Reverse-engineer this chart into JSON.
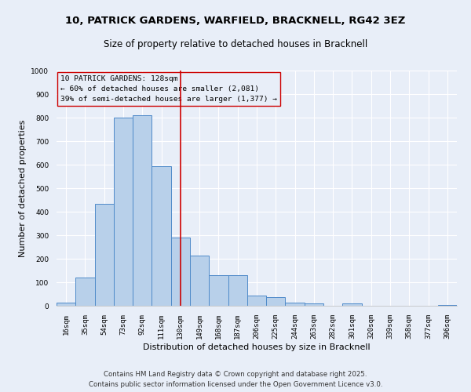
{
  "title_line1": "10, PATRICK GARDENS, WARFIELD, BRACKNELL, RG42 3EZ",
  "title_line2": "Size of property relative to detached houses in Bracknell",
  "xlabel": "Distribution of detached houses by size in Bracknell",
  "ylabel": "Number of detached properties",
  "bin_labels": [
    "16sqm",
    "35sqm",
    "54sqm",
    "73sqm",
    "92sqm",
    "111sqm",
    "130sqm",
    "149sqm",
    "168sqm",
    "187sqm",
    "206sqm",
    "225sqm",
    "244sqm",
    "263sqm",
    "282sqm",
    "301sqm",
    "320sqm",
    "339sqm",
    "358sqm",
    "377sqm",
    "396sqm"
  ],
  "bar_heights": [
    15,
    120,
    435,
    800,
    810,
    595,
    290,
    215,
    130,
    130,
    42,
    38,
    12,
    10,
    0,
    10,
    0,
    0,
    0,
    0,
    5
  ],
  "bar_color": "#b8d0ea",
  "bar_edge_color": "#4f8ac9",
  "vline_color": "#cc0000",
  "vline_pos": 6.0,
  "annotation_text_line1": "10 PATRICK GARDENS: 128sqm",
  "annotation_text_line2": "← 60% of detached houses are smaller (2,081)",
  "annotation_text_line3": "39% of semi-detached houses are larger (1,377) →",
  "annotation_fontsize": 6.8,
  "box_edge_color": "#cc0000",
  "ylim": [
    0,
    1000
  ],
  "yticks": [
    0,
    100,
    200,
    300,
    400,
    500,
    600,
    700,
    800,
    900,
    1000
  ],
  "footer_text": "Contains HM Land Registry data © Crown copyright and database right 2025.\nContains public sector information licensed under the Open Government Licence v3.0.",
  "bg_color": "#e8eef8",
  "grid_color": "#ffffff",
  "title1_fontsize": 9.5,
  "title2_fontsize": 8.5,
  "axis_label_fontsize": 8,
  "tick_fontsize": 6.5,
  "footer_fontsize": 6.2
}
